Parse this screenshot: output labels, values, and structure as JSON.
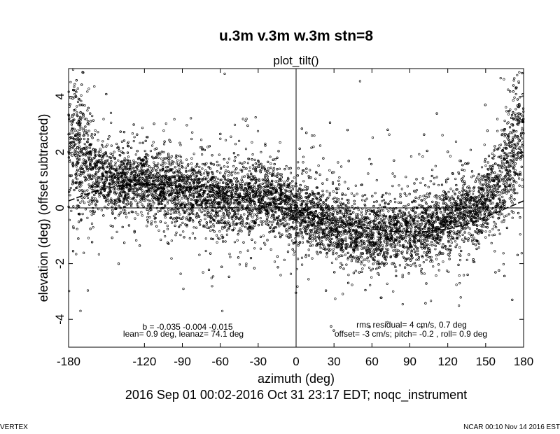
{
  "chart_data": {
    "type": "scatter",
    "title": "u.3m v.3m w.3m stn=8",
    "subtitle": "plot_tilt()",
    "xlabel": "azimuth (deg)",
    "ylabel": "elevation (deg)   (offset subtracted)",
    "xlim": [
      -180,
      180
    ],
    "ylim": [
      -5,
      5
    ],
    "xticks": [
      -180,
      -120,
      -90,
      -60,
      -30,
      0,
      30,
      60,
      90,
      120,
      150,
      180
    ],
    "yticks": [
      -4,
      -2,
      0,
      2,
      4
    ],
    "xtick_labels": [
      "-180",
      "-120",
      "-90",
      "-60",
      "-30",
      "0",
      "30",
      "60",
      "90",
      "120",
      "150",
      "180"
    ],
    "ytick_labels": [
      "-4",
      "-2",
      "0",
      "2",
      "4"
    ],
    "fit": {
      "lean_deg": 0.9,
      "leanaz_deg": 74.1
    },
    "fit_curve": {
      "x": [
        -180,
        -160,
        -140,
        -120,
        -100,
        -80,
        -60,
        -40,
        -20,
        0,
        20,
        40,
        60,
        80,
        100,
        120,
        140,
        160,
        180
      ],
      "y": [
        0.25,
        0.59,
        0.8,
        0.87,
        0.83,
        0.7,
        0.5,
        0.31,
        0.09,
        -0.12,
        -0.36,
        -0.56,
        -0.77,
        -0.86,
        -0.86,
        -0.76,
        -0.52,
        -0.13,
        0.25
      ]
    },
    "scatter_trend": {
      "x": [
        -180,
        -170,
        -160,
        -150,
        -140,
        -130,
        -120,
        -110,
        -100,
        -90,
        -80,
        -70,
        -60,
        -50,
        -40,
        -30,
        -20,
        -10,
        0,
        10,
        20,
        30,
        40,
        50,
        60,
        70,
        80,
        90,
        100,
        110,
        120,
        130,
        140,
        150,
        160,
        170,
        180
      ],
      "y": [
        2.6,
        1.9,
        1.3,
        1.1,
        1.0,
        0.95,
        0.95,
        0.9,
        0.8,
        0.6,
        0.5,
        0.6,
        0.2,
        0.3,
        0.35,
        0.35,
        0.3,
        0.15,
        0.0,
        -0.3,
        -0.5,
        -0.55,
        -0.8,
        -0.9,
        -0.9,
        -0.95,
        -0.85,
        -0.85,
        -0.7,
        -0.6,
        -0.5,
        -0.2,
        0.0,
        0.2,
        0.8,
        1.8,
        3.0
      ]
    },
    "scatter_spread": 0.6,
    "n_points": 9000,
    "grid": false,
    "zero_lines": true,
    "annotations_left": [
      "b = -0.035 -0.004 -0.015",
      "lean= 0.9 deg, leanaz= 74.1 deg"
    ],
    "annotations_right": [
      "rms residual= 4 cm/s, 0.7 deg",
      "offset= -3 cm/s; pitch= -0.2 , roll=  0.9 deg"
    ],
    "period": "2016 Sep 01 00:02-2016 Oct 31 23:17 EDT; noqc_instrument"
  },
  "footer": {
    "left": "VERTEX",
    "right": "NCAR 00:10 Nov 14 2016 EST"
  },
  "colors": {
    "foreground": "#000000",
    "background": "#ffffff"
  }
}
